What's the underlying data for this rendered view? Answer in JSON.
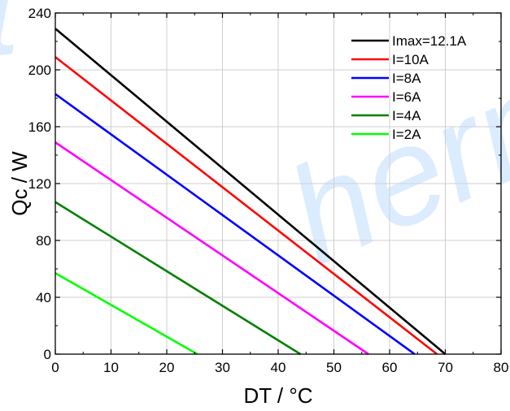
{
  "watermark": {
    "visible_fragment_1": "t",
    "visible_fragment_2": "herm"
  },
  "chart_data": {
    "type": "line",
    "title": "",
    "xlabel": "DT / °C",
    "ylabel": "Qc / W",
    "xlim": [
      0,
      80
    ],
    "ylim": [
      0,
      240
    ],
    "x_ticks": [
      0,
      10,
      20,
      30,
      40,
      50,
      60,
      70,
      80
    ],
    "y_ticks": [
      0,
      40,
      80,
      120,
      160,
      200,
      240
    ],
    "x_minor_step": 5,
    "y_minor_step": 20,
    "grid": true,
    "legend_position": "top-right",
    "series": [
      {
        "name": "Imax=12.1A",
        "color": "#000000",
        "x": [
          0,
          70
        ],
        "y": [
          229,
          0
        ]
      },
      {
        "name": "I=10A",
        "color": "#ff0000",
        "x": [
          0,
          68.5
        ],
        "y": [
          209,
          0
        ]
      },
      {
        "name": "I=8A",
        "color": "#0000ff",
        "x": [
          0,
          64.5
        ],
        "y": [
          183,
          0
        ]
      },
      {
        "name": "I=6A",
        "color": "#ff00ff",
        "x": [
          0,
          56.2
        ],
        "y": [
          149,
          0
        ]
      },
      {
        "name": "I=4A",
        "color": "#008000",
        "x": [
          0,
          44
        ],
        "y": [
          107,
          0
        ]
      },
      {
        "name": "I=2A",
        "color": "#00ff00",
        "x": [
          0,
          25.5
        ],
        "y": [
          57,
          0
        ]
      }
    ]
  }
}
